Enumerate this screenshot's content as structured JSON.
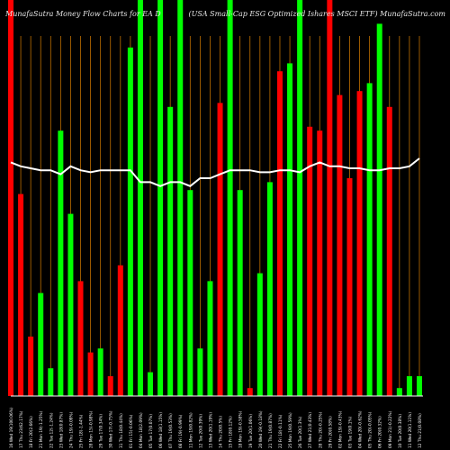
{
  "header": {
    "left": "MunafaSutra  Money Flow  Charts for EA  D",
    "right": "(USA Small-Cap ESG Optimized Ishares MSCI ETF) MunafaSutra.com"
  },
  "colors": {
    "background": "#000000",
    "up": "#00ff00",
    "down": "#ff0000",
    "grid": "#c07000",
    "line": "#ffffff",
    "axis": "#ffffff"
  },
  "chart_data": {
    "type": "bar",
    "title": "MunafaSutra  Money Flow  Charts for EA  D",
    "subtitle": "(USA Small-Cap ESG Optimized Ishares MSCI ETF) MunafaSutra.com",
    "grid": true,
    "ylim": [
      0,
      100
    ],
    "categories": [
      "16 Wed 19(100.06%)",
      "17 Thu 23(62.17%)",
      "18 Fri 20(2.66%)",
      "21 Mon 19(-1.25%)",
      "22 Tue 12(-1.24%)",
      "23 Wed 18(0.87%)",
      "24 Thu 19(-0.09%)",
      "25 Fri 18(-1.44%)",
      "28 Mon 15(-0.98%)",
      "29 Tue 17(0.34%)",
      "30 Wed 17(-0.75%)",
      "31 Thu 18(0.44%)",
      "01 Fri 15(-0.06%)",
      "04 Mon 18(2.09%)",
      "05 Tue 17(0.07%)",
      "06 Wed 18(1.15%)",
      "07 Thu 19(0.53%)",
      "08 Fri 19(-0.99%)",
      "11 Mon 19(0.82%)",
      "12 Tue 20(0.39%)",
      "13 Wed 20(1.19%)",
      "14 Thu 20(0.5%)",
      "15 Fri 18(0.12%)",
      "18 Mon 19(-0.58%)",
      "19 Tue 20(1.06%)",
      "20 Wed 19(-0.18%)",
      "21 Thu 19(0.87%)",
      "22 Fri 18(-0.11%)",
      "25 Mon 19(0.59%)",
      "26 Tue 20(1.3%)",
      "27 Wed 21(0.43%)",
      "28 Thu 20(-0.25%)",
      "29 Fri 20(0.58%)",
      "02 Mon 19(-0.43%)",
      "03 Tue 19(0.1%)",
      "04 Wed 20(-0.62%)",
      "05 Thu 20(-0.05%)",
      "06 Fri 20(0.32%)",
      "09 Mon 21(-0.22%)",
      "10 Tue 20(0.38%)",
      "11 Wed 20(1.11%)",
      "12 Thu 21(0.08%)"
    ],
    "bar_height_pct": [
      100,
      51,
      15,
      26,
      7,
      67,
      46,
      29,
      11,
      12,
      5,
      33,
      88,
      100,
      6,
      100,
      73,
      100,
      52,
      12,
      29,
      74,
      100,
      52,
      2,
      31,
      54,
      82,
      84,
      100,
      68,
      67,
      100,
      76,
      55,
      77,
      79,
      94,
      73,
      2,
      5,
      5
    ],
    "bar_direction": [
      "down",
      "down",
      "down",
      "up",
      "up",
      "up",
      "up",
      "down",
      "down",
      "up",
      "down",
      "down",
      "up",
      "up",
      "up",
      "up",
      "up",
      "up",
      "up",
      "up",
      "up",
      "down",
      "up",
      "up",
      "down",
      "up",
      "up",
      "down",
      "up",
      "up",
      "down",
      "down",
      "down",
      "down",
      "down",
      "down",
      "up",
      "up",
      "down",
      "up",
      "up",
      "up"
    ],
    "line_pct": [
      59,
      58,
      57.5,
      57,
      57,
      56,
      58,
      57,
      56.5,
      57,
      57,
      57,
      57,
      54,
      54,
      53,
      54,
      54,
      53,
      55,
      55,
      56,
      57,
      57,
      57,
      56.5,
      56.5,
      57,
      57,
      56.5,
      58,
      59,
      58,
      58,
      57.5,
      57.5,
      57,
      57,
      57.5,
      57.5,
      58,
      60
    ],
    "gridlines": 42
  }
}
